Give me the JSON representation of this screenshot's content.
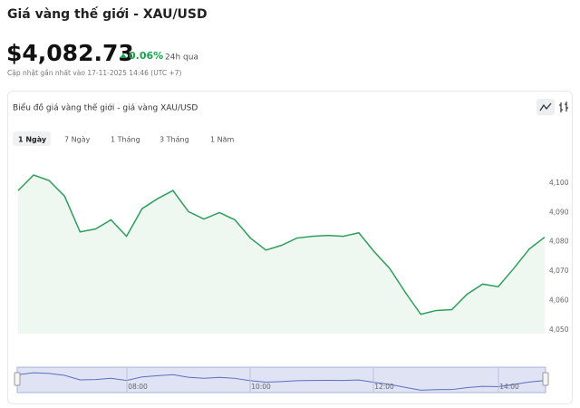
{
  "header": {
    "title": "Giá vàng thế giới - XAU/USD",
    "price": "$4,082.73",
    "change": "0.06%",
    "change_period": "24h qua",
    "updated": "Cập nhật gần nhất vào 17-11-2025 14:46 (UTC +7)"
  },
  "tabs": [
    "1 Ngày",
    "7 Ngày",
    "1 Tháng",
    "3 Tháng",
    "1 Năm"
  ],
  "chart_data": {
    "type": "area",
    "title": "Biểu đồ giá vàng thế giới - giá vàng XAU/USD",
    "color": "#2e9e5b",
    "fill": "#eef7f0",
    "values": [
      4097.5,
      4102.8,
      4100.9,
      4095.6,
      4083.4,
      4084.4,
      4087.5,
      4081.9,
      4091.3,
      4094.7,
      4097.5,
      4090.3,
      4087.8,
      4090.0,
      4087.5,
      4081.3,
      4077.2,
      4078.8,
      4081.3,
      4081.9,
      4082.2,
      4081.9,
      4083.1,
      4076.6,
      4070.9,
      4062.8,
      4055.3,
      4056.6,
      4056.9,
      4062.2,
      4065.6,
      4064.7,
      4070.9,
      4077.5,
      4081.6
    ],
    "ylim": [
      4048.7,
      4113
    ],
    "yticks": [
      {
        "value": 4050,
        "label": "4,050"
      },
      {
        "value": 4060,
        "label": "4,060"
      },
      {
        "value": 4070,
        "label": "4,070"
      },
      {
        "value": 4080,
        "label": "4,080"
      },
      {
        "value": 4090,
        "label": "4,090"
      },
      {
        "value": 4100,
        "label": "4,100"
      }
    ],
    "navigator_labels": [
      "08:00",
      "10:00",
      "12:00",
      "14:00"
    ]
  }
}
